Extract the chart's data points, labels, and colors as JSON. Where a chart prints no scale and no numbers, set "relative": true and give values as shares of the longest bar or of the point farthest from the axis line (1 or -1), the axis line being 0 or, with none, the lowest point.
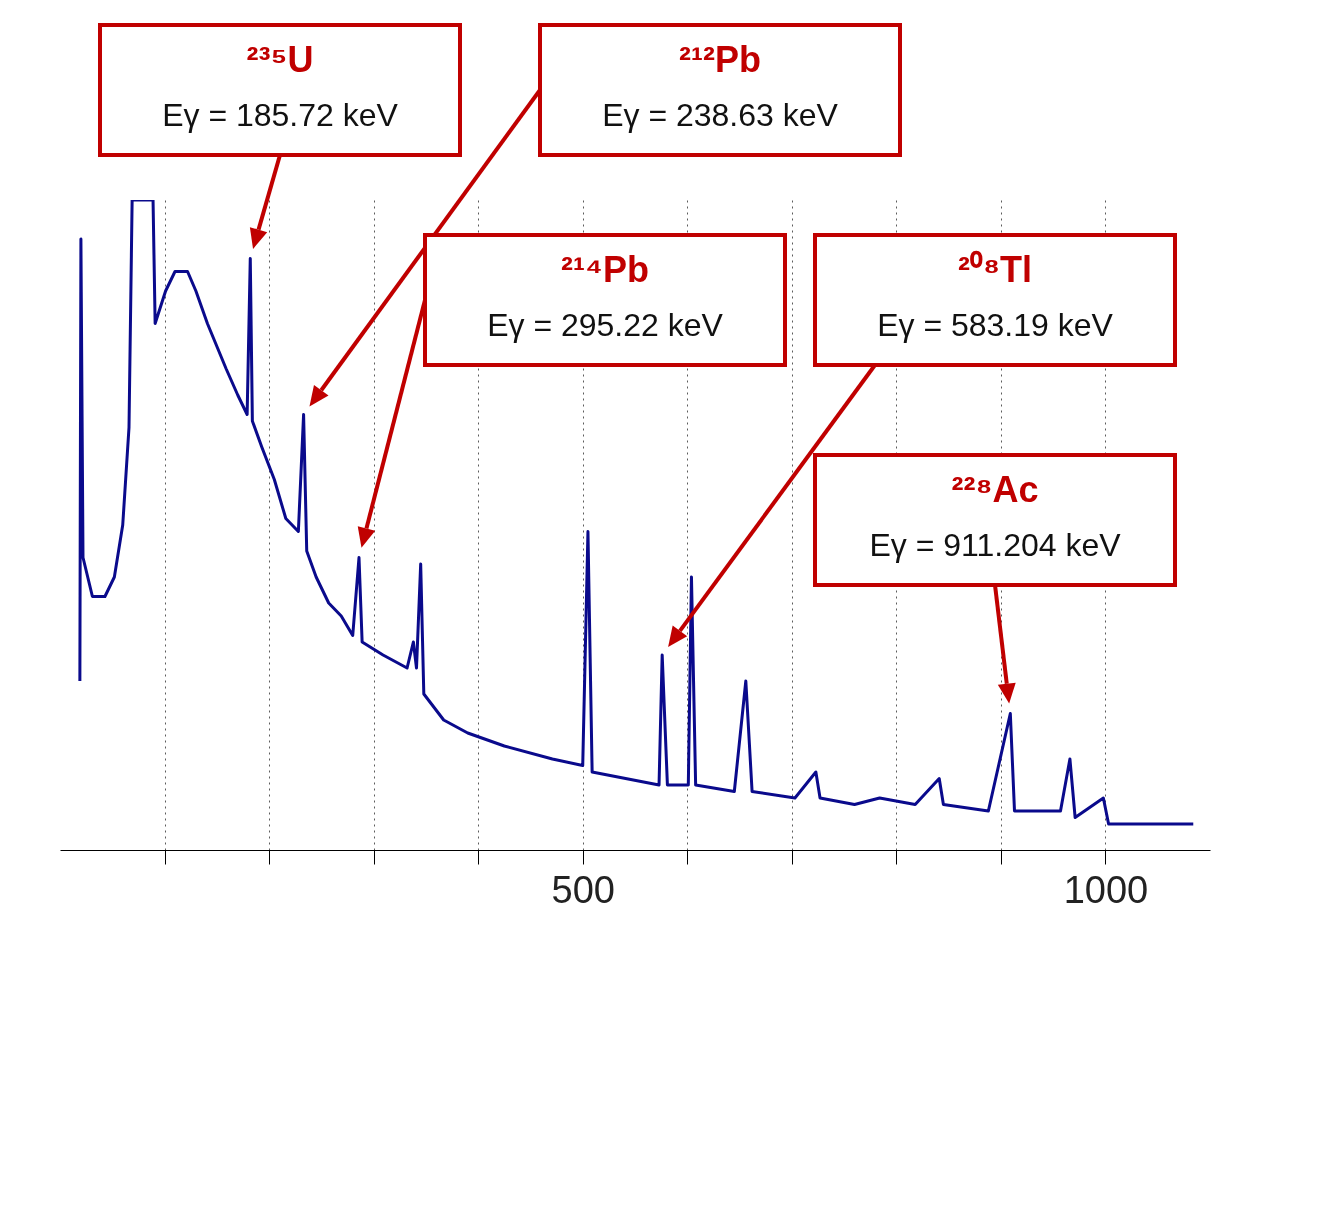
{
  "chart_data": {
    "type": "line",
    "relative": true,
    "color": "#0a0a8c",
    "x": [
      19,
      20,
      22,
      31,
      43,
      52,
      60,
      66,
      69,
      89,
      91,
      101,
      110,
      122,
      130,
      141,
      159,
      170,
      179,
      182,
      184,
      193,
      205,
      216,
      228,
      233,
      236,
      245,
      257,
      269,
      280,
      286,
      289,
      309,
      332,
      338,
      341,
      345,
      348,
      367,
      390,
      425,
      471,
      500,
      505,
      509,
      541,
      573,
      576,
      581,
      601,
      604,
      608,
      645,
      656,
      662,
      703,
      723,
      727,
      760,
      784,
      818,
      841,
      845,
      888,
      909,
      913,
      957,
      966,
      971,
      998,
      1003,
      1084
    ],
    "values": [
      0.26,
      0.94,
      0.45,
      0.39,
      0.39,
      0.42,
      0.5,
      0.65,
      1.0,
      1.0,
      0.81,
      0.86,
      0.89,
      0.89,
      0.86,
      0.81,
      0.74,
      0.7,
      0.67,
      0.91,
      0.66,
      0.62,
      0.57,
      0.51,
      0.49,
      0.67,
      0.46,
      0.42,
      0.38,
      0.36,
      0.33,
      0.45,
      0.32,
      0.3,
      0.28,
      0.32,
      0.28,
      0.44,
      0.24,
      0.2,
      0.18,
      0.16,
      0.14,
      0.13,
      0.49,
      0.12,
      0.11,
      0.1,
      0.3,
      0.1,
      0.1,
      0.42,
      0.1,
      0.09,
      0.26,
      0.09,
      0.08,
      0.12,
      0.08,
      0.07,
      0.08,
      0.07,
      0.11,
      0.07,
      0.06,
      0.21,
      0.06,
      0.06,
      0.14,
      0.05,
      0.08,
      0.04,
      0.04
    ],
    "xlim": [
      0,
      1100
    ],
    "xticks": [
      {
        "value": 100,
        "label": null
      },
      {
        "value": 200,
        "label": null
      },
      {
        "value": 300,
        "label": null
      },
      {
        "value": 400,
        "label": null
      },
      500,
      {
        "value": 600,
        "label": null
      },
      {
        "value": 700,
        "label": null
      },
      {
        "value": 800,
        "label": null
      },
      {
        "value": 900,
        "label": null
      },
      1000
    ],
    "grid": "x",
    "annotations": [
      "²³⁵U\nEγ = 185.72 keV",
      "²¹²Pb\nEγ = 238.63 keV",
      "²¹⁴Pb\nEγ = 295.22 keV",
      "²⁰⁸Tl\nEγ = 583.19 keV",
      "²²⁸Ac\nEγ = 911.204 keV"
    ]
  }
}
